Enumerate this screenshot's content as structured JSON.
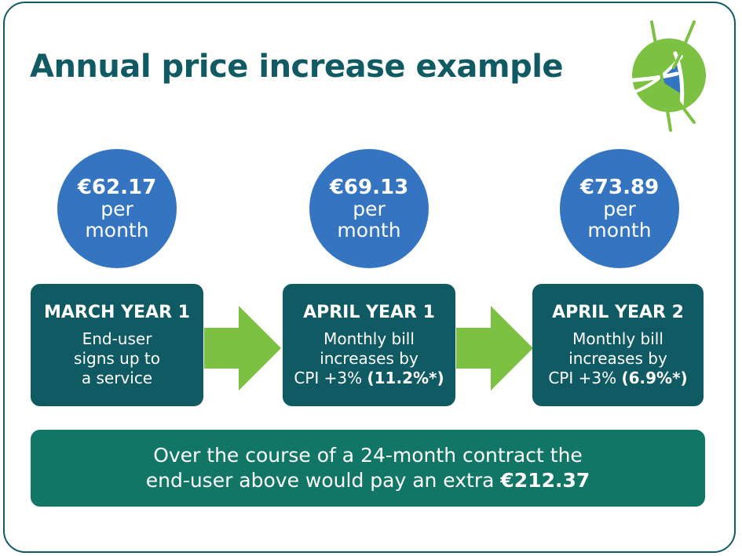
{
  "title": "Annual price increase example",
  "colors": {
    "dark_teal": "#0f5a63",
    "circle_blue": "#3474c0",
    "arrow_green": "#7dc142",
    "banner_green": "#127666"
  },
  "prices": [
    {
      "amount": "€62.17",
      "unit_line1": "per",
      "unit_line2": "month"
    },
    {
      "amount": "€69.13",
      "unit_line1": "per",
      "unit_line2": "month"
    },
    {
      "amount": "€73.89",
      "unit_line1": "per",
      "unit_line2": "month"
    }
  ],
  "stages": [
    {
      "heading": "MARCH YEAR 1",
      "line1": "End-user",
      "line2": "signs up to",
      "line3": "a service"
    },
    {
      "heading": "APRIL YEAR 1",
      "line1": "Monthly bill",
      "line2": "increases by",
      "line3": "CPI +3% ",
      "highlight": "(11.2%*)"
    },
    {
      "heading": "APRIL YEAR 2",
      "line1": "Monthly bill",
      "line2": "increases by",
      "line3": "CPI +3% ",
      "highlight": "(6.9%*)"
    }
  ],
  "summary": {
    "line1": "Over the course of a 24-month contract the",
    "line2": "end-user above would pay an extra ",
    "amount": "€212.37"
  },
  "icons": {
    "logo": "logo-mark-icon",
    "arrow": "arrow-right-icon"
  }
}
